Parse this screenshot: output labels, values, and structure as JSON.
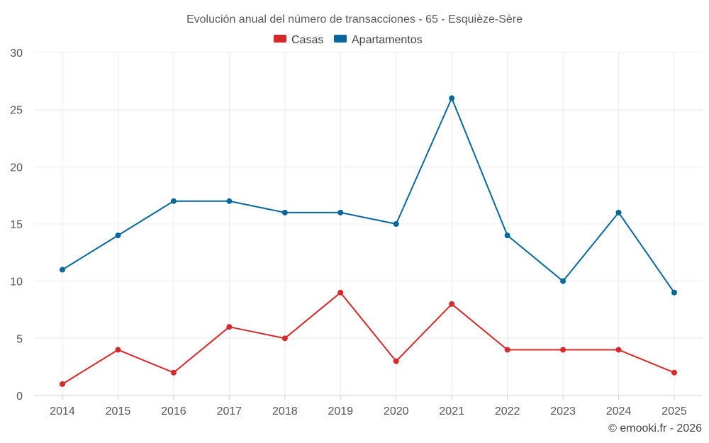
{
  "chart_data": {
    "type": "line",
    "title": "Evolución anual del número de transacciones - 65 - Esquièze-Sère",
    "categories": [
      "2014",
      "2015",
      "2016",
      "2017",
      "2018",
      "2019",
      "2020",
      "2021",
      "2022",
      "2023",
      "2024",
      "2025"
    ],
    "series": [
      {
        "name": "Casas",
        "color": "#d42a2a",
        "values": [
          1,
          4,
          2,
          6,
          5,
          9,
          3,
          8,
          4,
          4,
          4,
          2
        ]
      },
      {
        "name": "Apartamentos",
        "color": "#08679b",
        "values": [
          11,
          14,
          17,
          17,
          16,
          16,
          15,
          26,
          14,
          10,
          16,
          9
        ]
      }
    ],
    "ylim": [
      0,
      30
    ],
    "yticks": [
      0,
      5,
      10,
      15,
      20,
      25,
      30
    ],
    "xlabel": "",
    "ylabel": "",
    "grid": true,
    "legend_position": "top-center"
  },
  "credit": "© emooki.fr - 2026"
}
